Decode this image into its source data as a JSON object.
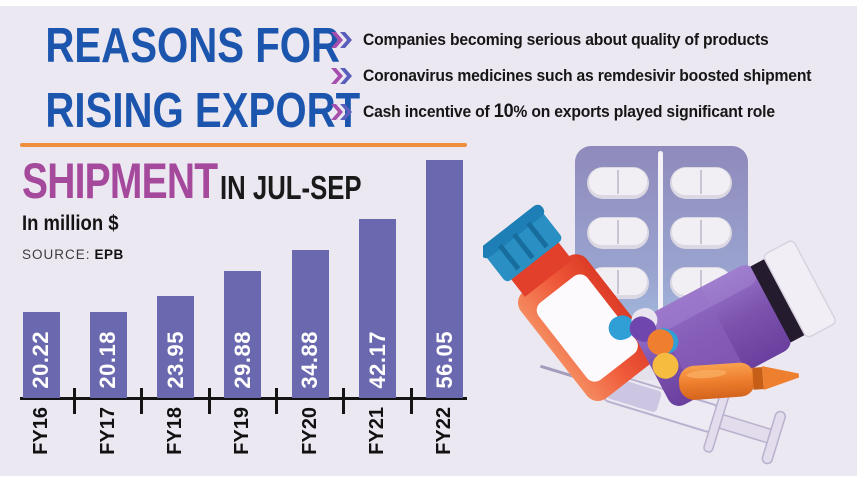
{
  "colors": {
    "background": "#ece8f1",
    "edge_strip": "#ffffff",
    "title_blue": "#1b55ad",
    "chevron_magenta": "#a44fae",
    "chevron_indigo": "#5a5fbe",
    "rule_orange": "#ef8f3d",
    "shipment_purple": "#a4499c",
    "bar_purple": "#6a68ae"
  },
  "headline": {
    "line1": "REASONS FOR",
    "line2": "RISING EXPORT"
  },
  "bullets": [
    {
      "pre": "Companies becoming serious about quality of products",
      "bold": "",
      "post": ""
    },
    {
      "pre": "Coronavirus medicines such as remdesivir boosted shipment",
      "bold": "",
      "post": ""
    },
    {
      "pre": "Cash incentive of ",
      "bold": "10",
      "post": "% on exports played significant role"
    }
  ],
  "chart_data": {
    "type": "bar",
    "title": "SHIPMENT",
    "subtitle": "IN JUL-SEP",
    "unit_label": "In million $",
    "source_prefix": "SOURCE:",
    "source_value": "EPB",
    "categories": [
      "FY16",
      "FY17",
      "FY18",
      "FY19",
      "FY20",
      "FY21",
      "FY22"
    ],
    "values": [
      20.22,
      20.18,
      23.95,
      29.88,
      34.88,
      42.17,
      56.05
    ],
    "ylim": [
      0,
      60
    ],
    "grid": false,
    "legend": false,
    "bar_color": "#6a68ae",
    "value_label_color": "#ffffff",
    "value_label_style": "rotated-inside-bottom",
    "category_label_style": "rotated-below-axis"
  },
  "illustration": {
    "name": "medicines-illustration",
    "items": [
      "pill-blister-pack",
      "red-medicine-bottle",
      "purple-medicine-jar",
      "capsules",
      "orange-ampoule",
      "syringe"
    ]
  }
}
